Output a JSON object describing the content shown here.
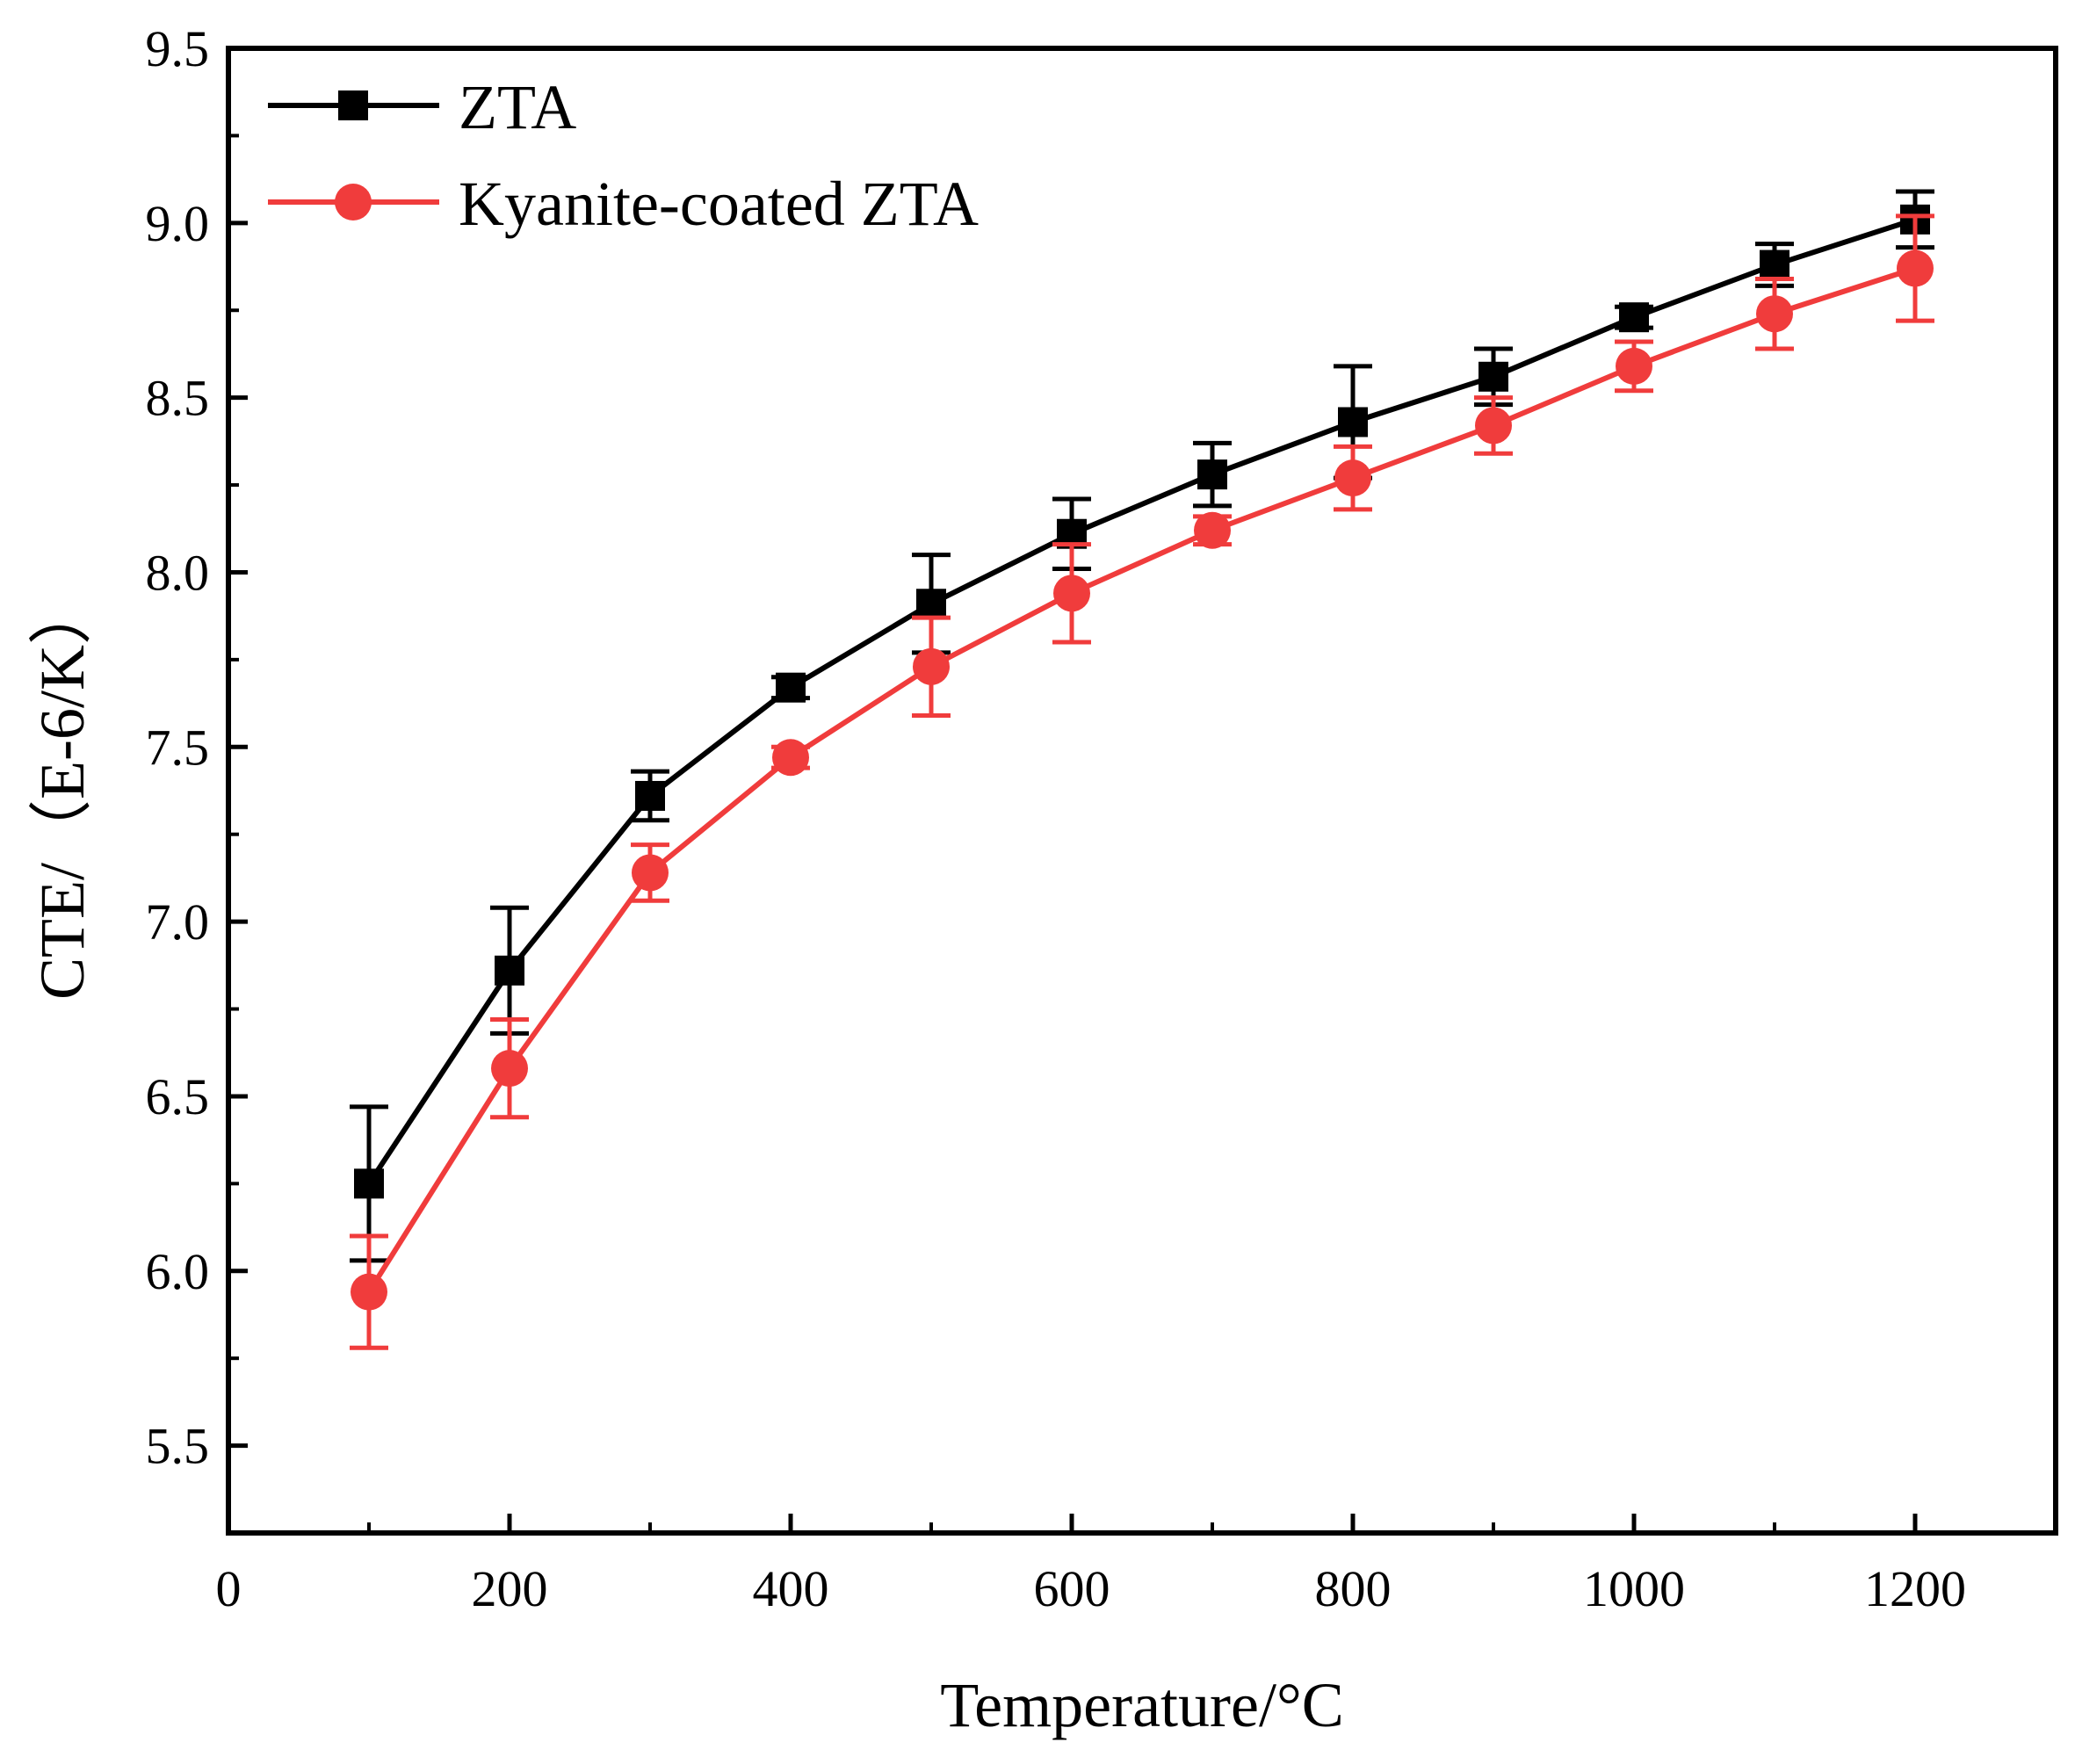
{
  "chart_data": {
    "type": "line",
    "title": "",
    "xlabel": "Temperature/°C",
    "ylabel": "CTE/（E-6/K）",
    "xlim": [
      0,
      1300
    ],
    "ylim": [
      5.25,
      9.5
    ],
    "x_ticks": [
      0,
      200,
      400,
      600,
      800,
      1000,
      1200
    ],
    "x_tick_labels": [
      "0",
      "200",
      "400",
      "600",
      "800",
      "1000",
      "1200"
    ],
    "y_ticks": [
      5.5,
      6.0,
      6.5,
      7.0,
      7.5,
      8.0,
      8.5,
      9.0,
      9.5
    ],
    "y_tick_labels": [
      "5.5",
      "6.0",
      "6.5",
      "7.0",
      "7.5",
      "8.0",
      "8.5",
      "9.0",
      "9.5"
    ],
    "grid": false,
    "legend_position": "top-left",
    "x": [
      100,
      200,
      300,
      400,
      500,
      600,
      700,
      800,
      900,
      1000,
      1100,
      1200
    ],
    "series": [
      {
        "name": "ZTA",
        "color": "#000000",
        "marker": "square",
        "values": [
          6.25,
          6.86,
          7.36,
          7.67,
          7.91,
          8.11,
          8.28,
          8.43,
          8.56,
          8.73,
          8.88,
          9.01
        ],
        "errors": [
          0.22,
          0.18,
          0.07,
          0.03,
          0.14,
          0.1,
          0.09,
          0.16,
          0.08,
          0.03,
          0.06,
          0.08
        ]
      },
      {
        "name": "Kyanite-coated ZTA",
        "color": "#f03c3c",
        "marker": "circle",
        "values": [
          5.94,
          6.58,
          7.14,
          7.47,
          7.73,
          7.94,
          8.12,
          8.27,
          8.42,
          8.59,
          8.74,
          8.87
        ],
        "errors": [
          0.16,
          0.14,
          0.08,
          0.03,
          0.14,
          0.14,
          0.04,
          0.09,
          0.08,
          0.07,
          0.1,
          0.15
        ]
      }
    ]
  }
}
